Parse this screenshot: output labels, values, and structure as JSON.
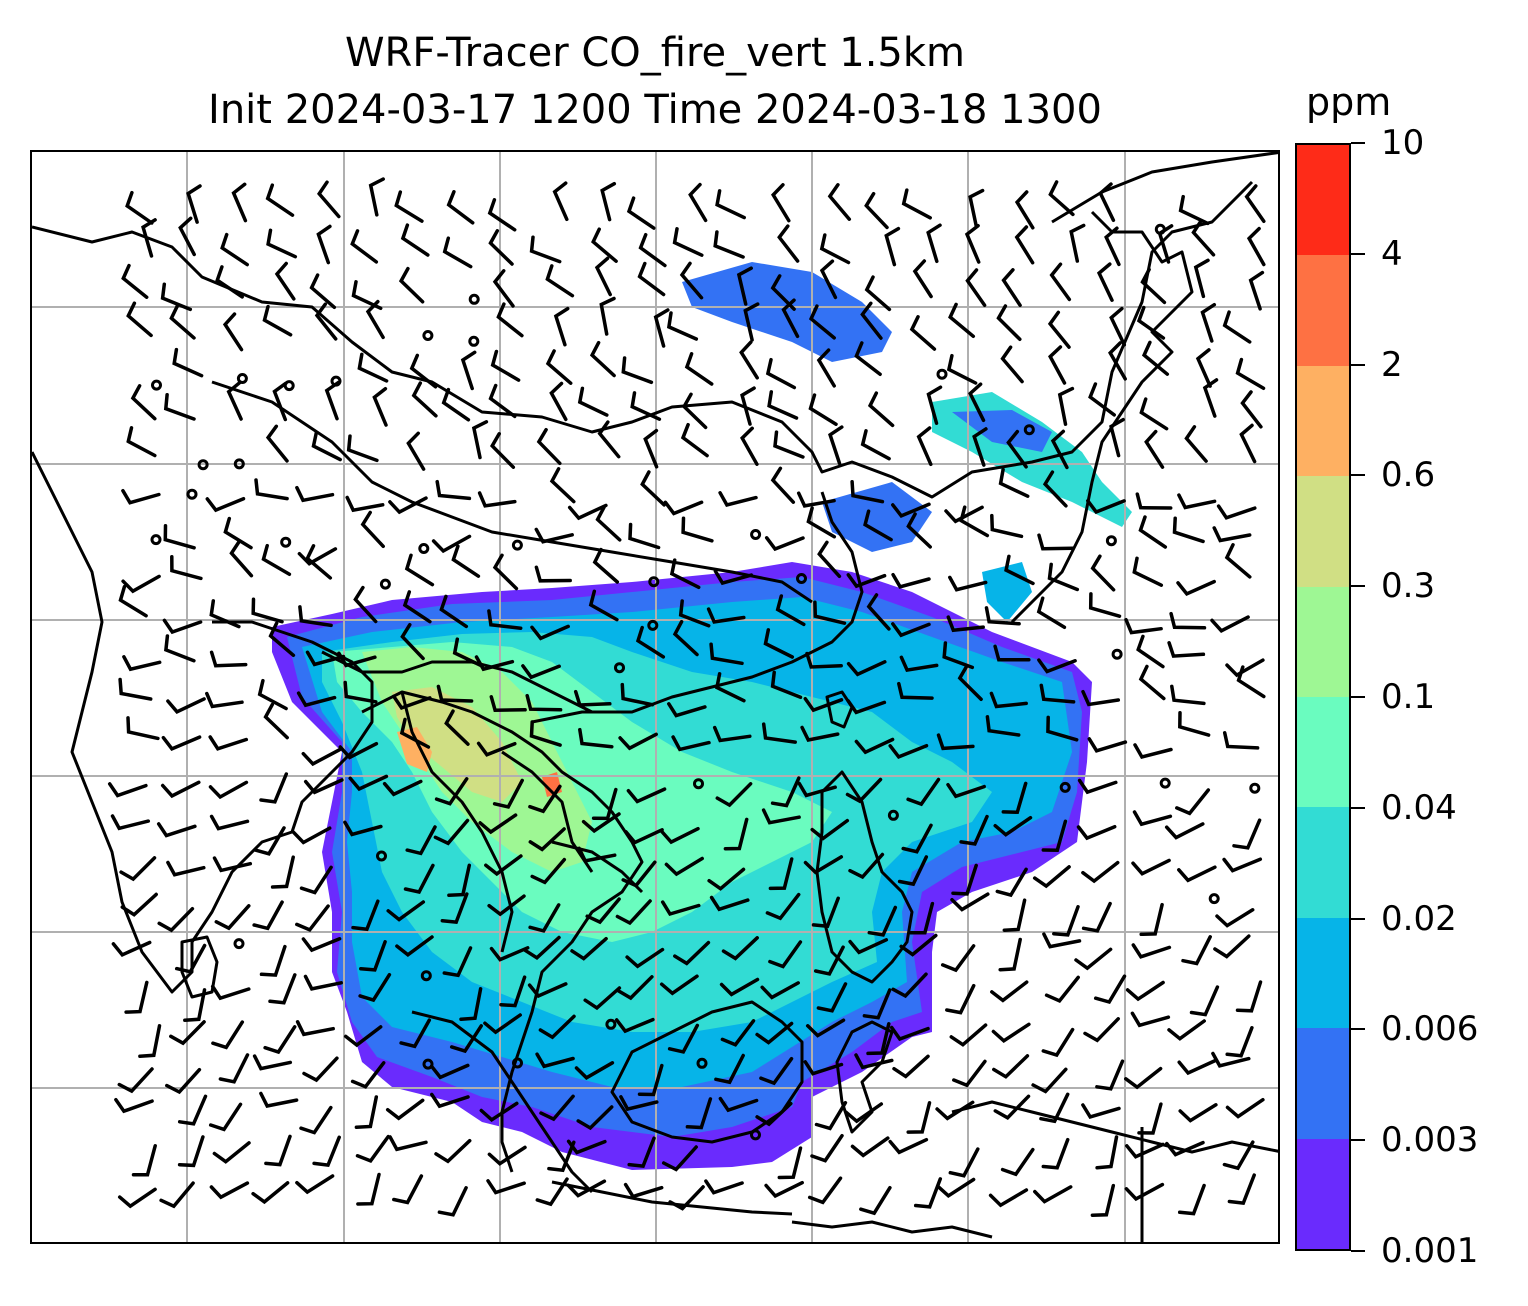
{
  "title_line1": "WRF-Tracer CO_fire_vert 1.5km",
  "title_line2": "Init 2024-03-17 1200 Time 2024-03-18 1300",
  "colorbar": {
    "unit_label": "ppm",
    "tick_labels": [
      "0.001",
      "0.003",
      "0.006",
      "0.02",
      "0.04",
      "0.1",
      "0.3",
      "0.6",
      "2",
      "4",
      "10"
    ],
    "colors": [
      "#6a2bfd",
      "#3372f4",
      "#06b4e8",
      "#32dcd4",
      "#6afcbf",
      "#9ef794",
      "#d0df84",
      "#feb062",
      "#fe7143",
      "#fe2b18"
    ]
  },
  "map": {
    "field": "CO_fire_vert",
    "level": "1.5km",
    "overlay": "wind barbs",
    "gridlines": true,
    "coastlines": true,
    "country_borders": true
  }
}
